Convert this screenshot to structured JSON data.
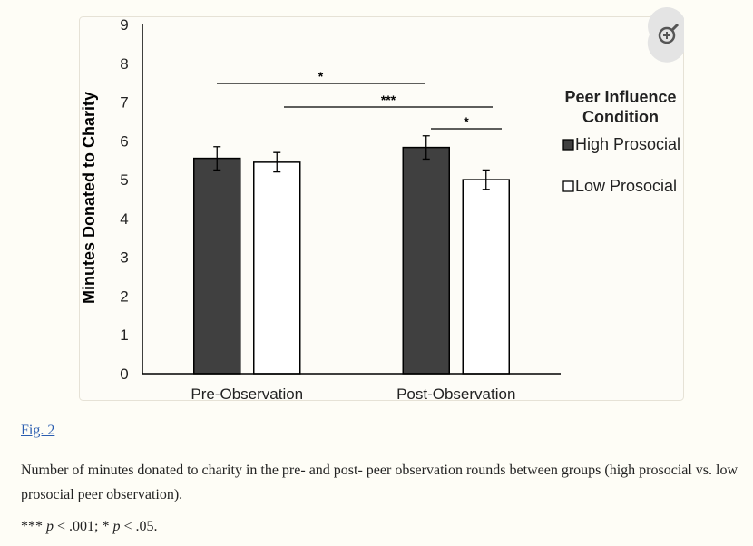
{
  "chart_data": {
    "type": "bar",
    "y_label": "Minutes Donated to Charity",
    "categories": [
      "Pre-Observation",
      "Post-Observation"
    ],
    "series": [
      {
        "name": "High Prosocial",
        "color": "#404040",
        "values": [
          5.55,
          5.83
        ],
        "errors": [
          0.3,
          0.3
        ]
      },
      {
        "name": "Low Prosocial",
        "color": "#ffffff",
        "values": [
          5.45,
          5.0
        ],
        "errors": [
          0.25,
          0.25
        ]
      }
    ],
    "ylim": [
      0,
      9
    ],
    "yticks": [
      0,
      1,
      2,
      3,
      4,
      5,
      6,
      7,
      8,
      9
    ],
    "legend_title": [
      "Peer Influence",
      "Condition"
    ],
    "significance": [
      "*",
      "***",
      "*"
    ]
  },
  "figure_label": "Fig. 2",
  "caption": "Number of minutes donated to charity in the pre- and post- peer observation rounds between groups (high prosocial vs. low prosocial peer observation).",
  "footnote": [
    "*** ",
    "p",
    " < .001; * ",
    "p",
    " < .05."
  ]
}
